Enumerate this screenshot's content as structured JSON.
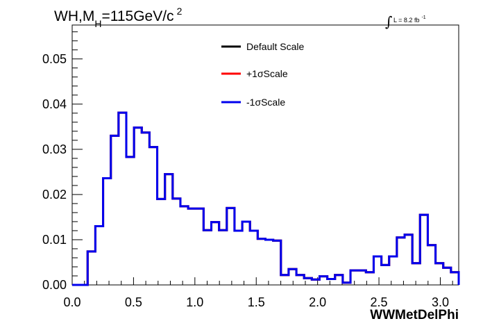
{
  "title": {
    "process": "WH,M",
    "subscript": "H",
    "mass": "=115GeV/c",
    "superscript": "2"
  },
  "luminosity": {
    "symbol": "∫",
    "text": "L = 8.2 fb",
    "exponent": "-1"
  },
  "chart_data": {
    "type": "line",
    "style": "step-histogram",
    "xlabel": "WWMetDelPhi",
    "ylabel": "",
    "xlim": [
      0.0,
      3.15
    ],
    "ylim": [
      0.0,
      0.0575
    ],
    "x_ticks": [
      "0.0",
      "0.5",
      "1.0",
      "1.5",
      "2.0",
      "2.5",
      "3.0"
    ],
    "y_ticks": [
      "0.00",
      "0.01",
      "0.02",
      "0.03",
      "0.04",
      "0.05"
    ],
    "grid": false,
    "legend_position": "top-center",
    "bin_edges": [
      0.0,
      0.063,
      0.126,
      0.189,
      0.252,
      0.315,
      0.378,
      0.441,
      0.504,
      0.567,
      0.63,
      0.693,
      0.756,
      0.819,
      0.882,
      0.945,
      1.008,
      1.071,
      1.134,
      1.197,
      1.26,
      1.323,
      1.386,
      1.449,
      1.512,
      1.575,
      1.638,
      1.701,
      1.764,
      1.827,
      1.89,
      1.953,
      2.016,
      2.079,
      2.142,
      2.205,
      2.268,
      2.331,
      2.394,
      2.457,
      2.52,
      2.583,
      2.646,
      2.709,
      2.772,
      2.835,
      2.898,
      2.961,
      3.024,
      3.087,
      3.15
    ],
    "series": [
      {
        "name": "Default Scale",
        "color": "#000000",
        "values": [
          0.0,
          0.0,
          0.0074,
          0.013,
          0.0236,
          0.033,
          0.0381,
          0.0283,
          0.0348,
          0.0337,
          0.0305,
          0.019,
          0.0245,
          0.0191,
          0.0174,
          0.0169,
          0.0169,
          0.0121,
          0.0139,
          0.0121,
          0.017,
          0.012,
          0.014,
          0.012,
          0.0102,
          0.01,
          0.0098,
          0.0022,
          0.0035,
          0.0022,
          0.0015,
          0.0012,
          0.0019,
          0.0013,
          0.0022,
          0.0005,
          0.0032,
          0.0032,
          0.0028,
          0.0063,
          0.0044,
          0.0063,
          0.0105,
          0.0111,
          0.0048,
          0.0155,
          0.0088,
          0.0048,
          0.0038,
          0.0028,
          0.0
        ]
      },
      {
        "name": "+1σScale",
        "color": "#ff0000",
        "values": [
          0.0,
          0.0,
          0.0074,
          0.013,
          0.0236,
          0.033,
          0.0381,
          0.0283,
          0.0348,
          0.0337,
          0.0305,
          0.019,
          0.0245,
          0.0191,
          0.0174,
          0.0169,
          0.0169,
          0.0121,
          0.0139,
          0.0121,
          0.017,
          0.012,
          0.014,
          0.012,
          0.0102,
          0.01,
          0.0098,
          0.0022,
          0.0035,
          0.0022,
          0.0015,
          0.0012,
          0.0019,
          0.0013,
          0.0022,
          0.0005,
          0.0032,
          0.0032,
          0.0028,
          0.0063,
          0.0044,
          0.0063,
          0.0105,
          0.0111,
          0.0048,
          0.0155,
          0.0088,
          0.0048,
          0.0038,
          0.0028,
          0.0
        ]
      },
      {
        "name": "-1σScale",
        "color": "#0000ee",
        "values": [
          0.0,
          0.0,
          0.0074,
          0.013,
          0.0236,
          0.033,
          0.0381,
          0.0283,
          0.0348,
          0.0337,
          0.0305,
          0.019,
          0.0245,
          0.0191,
          0.0174,
          0.0169,
          0.0169,
          0.0121,
          0.0139,
          0.0121,
          0.017,
          0.012,
          0.014,
          0.012,
          0.0102,
          0.01,
          0.0098,
          0.0022,
          0.0035,
          0.0022,
          0.0015,
          0.0012,
          0.0019,
          0.0013,
          0.0022,
          0.0005,
          0.0032,
          0.0032,
          0.0028,
          0.0063,
          0.0044,
          0.0063,
          0.0105,
          0.0111,
          0.0048,
          0.0155,
          0.0088,
          0.0048,
          0.0038,
          0.0028,
          0.0
        ]
      }
    ]
  }
}
